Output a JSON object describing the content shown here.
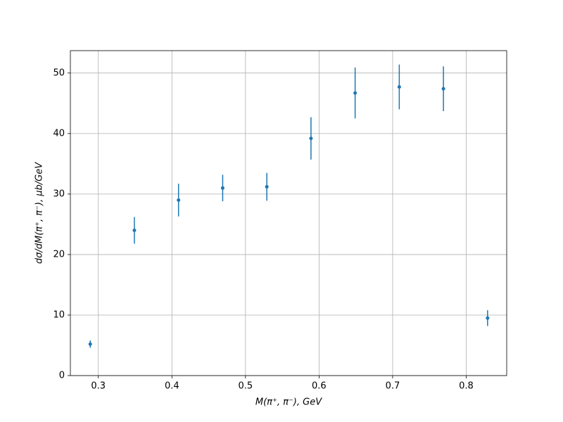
{
  "chart_data": {
    "type": "scatter",
    "xlabel": "M(π⁺, π⁻), GeV",
    "ylabel": "dσ/dM(π⁺, π⁻), μb/GeV",
    "x": [
      0.289,
      0.349,
      0.409,
      0.469,
      0.529,
      0.589,
      0.649,
      0.709,
      0.769,
      0.829
    ],
    "values": [
      5.2,
      24.0,
      29.0,
      31.0,
      31.2,
      39.2,
      46.7,
      47.7,
      47.4,
      9.5
    ],
    "errors": [
      0.6,
      2.2,
      2.7,
      2.2,
      2.3,
      3.5,
      4.2,
      3.7,
      3.7,
      1.3
    ],
    "color": "#1f77b4",
    "xlim": [
      0.262,
      0.855
    ],
    "xticks": [
      0.3,
      0.4,
      0.5,
      0.6,
      0.7,
      0.8
    ],
    "ylim": [
      0,
      53.7
    ],
    "yticks": [
      0,
      10,
      20,
      30,
      40,
      50
    ],
    "grid": true
  }
}
